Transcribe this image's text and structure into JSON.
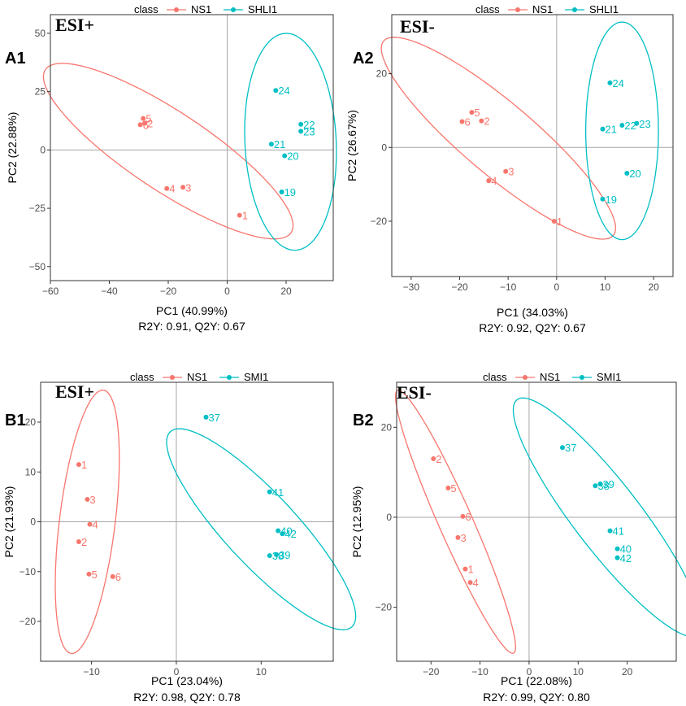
{
  "colors": {
    "ns": "#F8766D",
    "grp": "#00BFC4",
    "axis": "#999999",
    "frame": "#333333"
  },
  "chart_data": [
    {
      "id": "A1",
      "panel_label": "A1",
      "mode_label": "ESI+",
      "type": "scatter",
      "legend": {
        "title": "class",
        "entries": [
          "NS1",
          "SHLI1"
        ]
      },
      "xlabel": "PC1 (40.99%)",
      "ylabel": "PC2 (22.88%)",
      "stats": "R2Y: 0.91, Q2Y: 0.67",
      "xlim": [
        -60,
        36
      ],
      "ylim": [
        -56,
        58
      ],
      "xticks": [
        -60,
        -40,
        -20,
        0,
        20
      ],
      "yticks": [
        -50,
        -25,
        0,
        25,
        50
      ],
      "xtick_labels": [
        "−60",
        "−40",
        "−20",
        "0",
        "20"
      ],
      "ytick_labels": [
        "−50",
        "−25",
        "0",
        "25",
        "50"
      ],
      "series": [
        {
          "name": "NS1",
          "color_key": "ns",
          "points": [
            {
              "label": "5",
              "x": -28.5,
              "y": 13.5
            },
            {
              "label": "6",
              "x": -29.5,
              "y": 10.8
            },
            {
              "label": "2",
              "x": -28.0,
              "y": 11.5
            },
            {
              "label": "4",
              "x": -20.5,
              "y": -16.5
            },
            {
              "label": "3",
              "x": -15.0,
              "y": -16.0
            },
            {
              "label": "1",
              "x": 4.2,
              "y": -28.0
            }
          ],
          "ellipse": {
            "cx": -20,
            "cy": -0.5,
            "a": 54.5,
            "b": 15.5,
            "angle": -41
          }
        },
        {
          "name": "SHLI1",
          "color_key": "grp",
          "points": [
            {
              "label": "24",
              "x": 16.5,
              "y": 25.5
            },
            {
              "label": "22",
              "x": 25.0,
              "y": 11.0
            },
            {
              "label": "23",
              "x": 25.0,
              "y": 8.0
            },
            {
              "label": "21",
              "x": 15.0,
              "y": 2.5
            },
            {
              "label": "20",
              "x": 19.5,
              "y": -2.5
            },
            {
              "label": "19",
              "x": 18.5,
              "y": -18.0
            }
          ],
          "ellipse": {
            "cx": 21.5,
            "cy": 3.5,
            "a": 46.5,
            "b": 15.5,
            "angle": -88
          }
        }
      ]
    },
    {
      "id": "A2",
      "panel_label": "A2",
      "mode_label": "ESI-",
      "type": "scatter",
      "legend": {
        "title": "class",
        "entries": [
          "NS1",
          "SHLI1"
        ]
      },
      "xlabel": "PC1 (34.03%)",
      "ylabel": "PC2 (26.67%)",
      "stats": "R2Y: 0.92, Q2Y: 0.67",
      "xlim": [
        -34,
        24
      ],
      "ylim": [
        -35,
        36
      ],
      "xticks": [
        -30,
        -20,
        -10,
        0,
        10,
        20
      ],
      "yticks": [
        -20,
        0,
        20
      ],
      "xtick_labels": [
        "−30",
        "−20",
        "−10",
        "0",
        "10",
        "20"
      ],
      "ytick_labels": [
        "−20",
        "0",
        "20"
      ],
      "series": [
        {
          "name": "NS1",
          "color_key": "ns",
          "points": [
            {
              "label": "5",
              "x": -17.5,
              "y": 9.5
            },
            {
              "label": "6",
              "x": -19.5,
              "y": 7.0
            },
            {
              "label": "2",
              "x": -15.5,
              "y": 7.2
            },
            {
              "label": "3",
              "x": -10.5,
              "y": -6.5
            },
            {
              "label": "4",
              "x": -14.0,
              "y": -9.0
            },
            {
              "label": "1",
              "x": -0.5,
              "y": -20.0
            }
          ],
          "ellipse": {
            "cx": -12,
            "cy": 2.5,
            "a": 35.5,
            "b": 8.5,
            "angle": -49
          }
        },
        {
          "name": "SHLI1",
          "color_key": "grp",
          "points": [
            {
              "label": "24",
              "x": 11.0,
              "y": 17.5
            },
            {
              "label": "22",
              "x": 13.5,
              "y": 6.0
            },
            {
              "label": "23",
              "x": 16.5,
              "y": 6.5
            },
            {
              "label": "21",
              "x": 9.5,
              "y": 5.0
            },
            {
              "label": "20",
              "x": 14.5,
              "y": -7.0
            },
            {
              "label": "19",
              "x": 9.5,
              "y": -14.0
            }
          ],
          "ellipse": {
            "cx": 13.5,
            "cy": 4.5,
            "a": 29.5,
            "b": 7.5,
            "angle": -90
          }
        }
      ]
    },
    {
      "id": "B1",
      "panel_label": "B1",
      "mode_label": "ESI+",
      "type": "scatter",
      "legend": {
        "title": "class",
        "entries": [
          "NS1",
          "SMI1"
        ]
      },
      "xlabel": "PC1 (23.04%)",
      "ylabel": "PC2 (21.93%)",
      "stats": "R2Y: 0.98, Q2Y: 0.78",
      "xlim": [
        -16,
        18.5
      ],
      "ylim": [
        -28,
        28
      ],
      "xticks": [
        -10,
        0,
        10
      ],
      "yticks": [
        -20,
        -10,
        0,
        10,
        20
      ],
      "xtick_labels": [
        "−10",
        "0",
        "10"
      ],
      "ytick_labels": [
        "−20",
        "−10",
        "0",
        "10",
        "20"
      ],
      "series": [
        {
          "name": "NS1",
          "color_key": "ns",
          "points": [
            {
              "label": "1",
              "x": -11.5,
              "y": 11.5
            },
            {
              "label": "3",
              "x": -10.5,
              "y": 4.5
            },
            {
              "label": "4",
              "x": -10.2,
              "y": -0.5
            },
            {
              "label": "2",
              "x": -11.5,
              "y": -4.0
            },
            {
              "label": "5",
              "x": -10.3,
              "y": -10.5
            },
            {
              "label": "6",
              "x": -7.5,
              "y": -11.0
            }
          ],
          "ellipse": {
            "cx": -10.5,
            "cy": 0,
            "a": 26.5,
            "b": 3.3,
            "angle": -94
          }
        },
        {
          "name": "SMI1",
          "color_key": "grp",
          "points": [
            {
              "label": "37",
              "x": 3.5,
              "y": 21.0
            },
            {
              "label": "41",
              "x": 11.0,
              "y": 6.0
            },
            {
              "label": "40",
              "x": 12.0,
              "y": -1.8
            },
            {
              "label": "42",
              "x": 12.5,
              "y": -2.4
            },
            {
              "label": "38",
              "x": 11.0,
              "y": -6.8
            },
            {
              "label": "39",
              "x": 11.8,
              "y": -6.6
            }
          ],
          "ellipse": {
            "cx": 10,
            "cy": -1.5,
            "a": 22.5,
            "b": 5.0,
            "angle": -63
          }
        }
      ]
    },
    {
      "id": "B2",
      "panel_label": "B2",
      "mode_label": "ESI-",
      "type": "scatter",
      "legend": {
        "title": "class",
        "entries": [
          "NS1",
          "SMI1"
        ]
      },
      "xlabel": "PC1 (22.08%)",
      "ylabel": "PC2 (12.95%)",
      "stats": "R2Y: 0.99, Q2Y: 0.80",
      "xlim": [
        -27,
        30
      ],
      "ylim": [
        -32,
        30
      ],
      "xticks": [
        -20,
        -10,
        0,
        10,
        20
      ],
      "yticks": [
        -20,
        0,
        20
      ],
      "xtick_labels": [
        "−20",
        "−10",
        "0",
        "10",
        "20"
      ],
      "ytick_labels": [
        "−20",
        "0",
        "20"
      ],
      "series": [
        {
          "name": "NS1",
          "color_key": "ns",
          "points": [
            {
              "label": "2",
              "x": -19.5,
              "y": 13.0
            },
            {
              "label": "5",
              "x": -16.5,
              "y": 6.5
            },
            {
              "label": "6",
              "x": -13.5,
              "y": 0.2
            },
            {
              "label": "3",
              "x": -14.5,
              "y": -4.5
            },
            {
              "label": "1",
              "x": -13.0,
              "y": -11.5
            },
            {
              "label": "4",
              "x": -12.0,
              "y": -14.5
            }
          ],
          "ellipse": {
            "cx": -15,
            "cy": -1,
            "a": 31.5,
            "b": 3.5,
            "angle": -68
          }
        },
        {
          "name": "SMI1",
          "color_key": "grp",
          "points": [
            {
              "label": "37",
              "x": 6.8,
              "y": 15.5
            },
            {
              "label": "38",
              "x": 13.5,
              "y": 7.0
            },
            {
              "label": "39",
              "x": 14.5,
              "y": 7.4
            },
            {
              "label": "41",
              "x": 16.5,
              "y": -3.0
            },
            {
              "label": "40",
              "x": 18.0,
              "y": -7.0
            },
            {
              "label": "42",
              "x": 18.0,
              "y": -9.0
            }
          ],
          "ellipse": {
            "cx": 16,
            "cy": 0,
            "a": 32.0,
            "b": 7.0,
            "angle": -55
          }
        }
      ]
    }
  ]
}
